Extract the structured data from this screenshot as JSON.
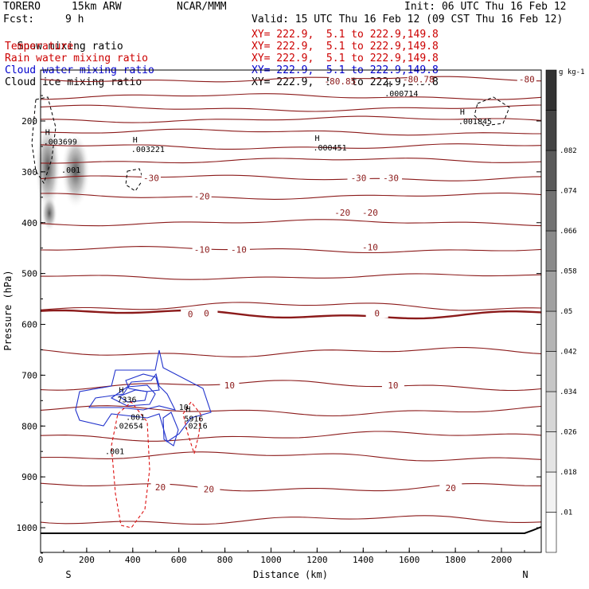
{
  "header": {
    "model": "TORERO",
    "resolution": "15km ARW",
    "org": "NCAR/MMM",
    "init": "Init: 06 UTC Thu 16 Feb 12",
    "fcst_label": "Fcst:",
    "fcst_value": "9 h",
    "valid": "Valid: 15 UTC Thu 16 Feb 12 (09 CST Thu 16 Feb 12)"
  },
  "legend": [
    {
      "name": "Snow mixing ratio",
      "xy": "",
      "color": "#000000"
    },
    {
      "name": "Temperature",
      "xy": "XY= 222.9,  5.1 to 222.9,149.8",
      "color": "#cc0000"
    },
    {
      "name": "Rain water mixing ratio",
      "xy": "XY= 222.9,  5.1 to 222.9,149.8",
      "color": "#cc0000"
    },
    {
      "name": "Cloud water mixing ratio",
      "xy": "XY= 222.9,  5.1 to 222.9,149.8",
      "color": "#0000cc"
    },
    {
      "name": "Cloud ice mixing ratio",
      "xy": "XY= 222.9,  5.1 to 222.9,149.8",
      "color": "#000000"
    }
  ],
  "first_xy": "XY= 222.9,  5.1 to 222.9,149.8",
  "chart_data": {
    "type": "cross-section contour",
    "xlabel": "Distance (km)",
    "ylabel": "Pressure (hPa)",
    "x_ticks": [
      0,
      200,
      400,
      600,
      800,
      1000,
      1200,
      1400,
      1600,
      1800,
      2000
    ],
    "y_ticks": [
      200,
      300,
      400,
      500,
      600,
      700,
      800,
      900,
      1000
    ],
    "xlim": [
      0,
      2180
    ],
    "ylim": [
      1050,
      100
    ],
    "left_end": "S",
    "right_end": "N",
    "colorbar": {
      "unit": "g kg-1",
      "labels": [
        ".01",
        ".018",
        ".026",
        ".034",
        ".042",
        ".05",
        ".058",
        ".066",
        ".074",
        ".082"
      ],
      "colors": [
        "#ffffff",
        "#f2f2f2",
        "#e4e4e4",
        "#d6d6d6",
        "#c6c6c6",
        "#b4b4b4",
        "#a0a0a0",
        "#8a8a8a",
        "#727272",
        "#5a5a5a",
        "#444444",
        "#333333"
      ]
    },
    "temperature_contours": [
      {
        "p": 118,
        "label": "-80",
        "label_x": 2110
      },
      {
        "p": 152,
        "label": "",
        "label_x": null
      },
      {
        "p": 175,
        "label": "",
        "label_x": null
      },
      {
        "p": 197,
        "label": "",
        "label_x": null
      },
      {
        "p": 222,
        "label": "",
        "label_x": null
      },
      {
        "p": 250,
        "label": "",
        "label_x": null
      },
      {
        "p": 278,
        "label": "",
        "label_x": null
      },
      {
        "p": 312,
        "label": "-30",
        "label_x": 480
      },
      {
        "p": 348,
        "label": "-20",
        "label_x": 700
      },
      {
        "p": 400,
        "label": "",
        "label_x": null
      },
      {
        "p": 453,
        "label": "-10",
        "label_x": 700
      },
      {
        "p": 506,
        "label": "",
        "label_x": null
      },
      {
        "p": 565,
        "label": "",
        "label_x": null
      },
      {
        "p": 580,
        "label": "0",
        "label_x": 650
      },
      {
        "p": 655,
        "label": "",
        "label_x": null
      },
      {
        "p": 720,
        "label": "10",
        "label_x": 820
      },
      {
        "p": 770,
        "label": "",
        "label_x": null
      },
      {
        "p": 820,
        "label": "",
        "label_x": null
      },
      {
        "p": 860,
        "label": "",
        "label_x": null
      },
      {
        "p": 920,
        "label": "20",
        "label_x": 520
      },
      {
        "p": 985,
        "label": "",
        "label_x": null
      }
    ],
    "extra_temp_labels": [
      {
        "x": 1380,
        "p": 312,
        "label": "-30"
      },
      {
        "x": 1520,
        "p": 312,
        "label": "-30"
      },
      {
        "x": 1310,
        "p": 380,
        "label": "-20"
      },
      {
        "x": 1430,
        "p": 380,
        "label": "-20"
      },
      {
        "x": 860,
        "p": 453,
        "label": "-10"
      },
      {
        "x": 1430,
        "p": 448,
        "label": "-10"
      },
      {
        "x": 720,
        "p": 578,
        "label": "0"
      },
      {
        "x": 1460,
        "p": 578,
        "label": "0"
      },
      {
        "x": 1530,
        "p": 720,
        "label": "10"
      },
      {
        "x": 730,
        "p": 924,
        "label": "20"
      },
      {
        "x": 1780,
        "p": 922,
        "label": "20"
      },
      {
        "x": 1300,
        "p": 122,
        "label": "-80.85"
      },
      {
        "x": 1640,
        "p": 118,
        "label": "-80.78"
      }
    ],
    "highs": [
      {
        "x": 20,
        "p": 240,
        "value": ".003699"
      },
      {
        "x": 400,
        "p": 255,
        "value": ".003221"
      },
      {
        "x": 1190,
        "p": 252,
        "value": ".000451"
      },
      {
        "x": 1500,
        "p": 145,
        "value": ".000714"
      },
      {
        "x": 1820,
        "p": 200,
        "value": ".001845"
      },
      {
        "x": 340,
        "p": 747,
        "value": "7336"
      },
      {
        "x": 630,
        "p": 785,
        "value": "5916"
      }
    ],
    "other_labels": [
      {
        "x": 90,
        "p": 302,
        "value": ".001",
        "color": "#000000"
      },
      {
        "x": 370,
        "p": 788,
        "value": ".001",
        "color": "#0000cc"
      },
      {
        "x": 320,
        "p": 805,
        "value": ".02654",
        "color": "#cc0000"
      },
      {
        "x": 620,
        "p": 805,
        "value": ".0216",
        "color": "#cc0000"
      },
      {
        "x": 280,
        "p": 855,
        "value": ".001",
        "color": "#cc0000"
      },
      {
        "x": 600,
        "p": 768,
        "value": "10",
        "color": "#8b1a1a"
      }
    ]
  }
}
